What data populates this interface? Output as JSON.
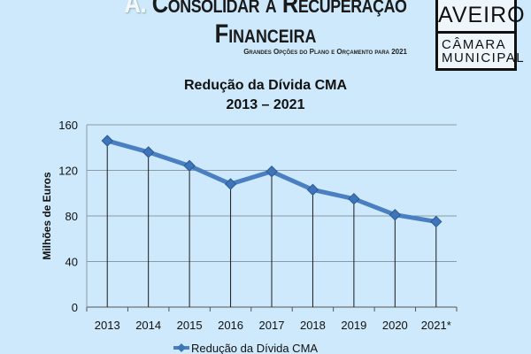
{
  "header": {
    "letter": "A.",
    "title_line1": "Consolidar a Recuperação",
    "title_line2": "Financeira",
    "subtitle": "Grandes Opções do Plano e Orçamento para 2021"
  },
  "logo": {
    "top": "AVEIRO",
    "line1": "CÂMARA",
    "line2": "MUNICIPAL"
  },
  "chart_data": {
    "type": "line",
    "title": "Redução da Dívida CMA",
    "subtitle": "2013 – 2021",
    "xlabel": "",
    "ylabel": "Milhões de Euros",
    "categories": [
      "2013",
      "2014",
      "2015",
      "2016",
      "2017",
      "2018",
      "2019",
      "2020",
      "2021*"
    ],
    "series": [
      {
        "name": "Redução da Dívida CMA",
        "values": [
          146,
          136,
          124,
          108,
          119,
          103,
          95,
          81,
          75
        ],
        "color": "#4a7fc1"
      }
    ],
    "ylim": [
      0,
      160
    ],
    "yticks": [
      "0",
      "40",
      "80",
      "120",
      "160"
    ],
    "grid": true,
    "drop_lines": true,
    "legend": "bottom"
  }
}
